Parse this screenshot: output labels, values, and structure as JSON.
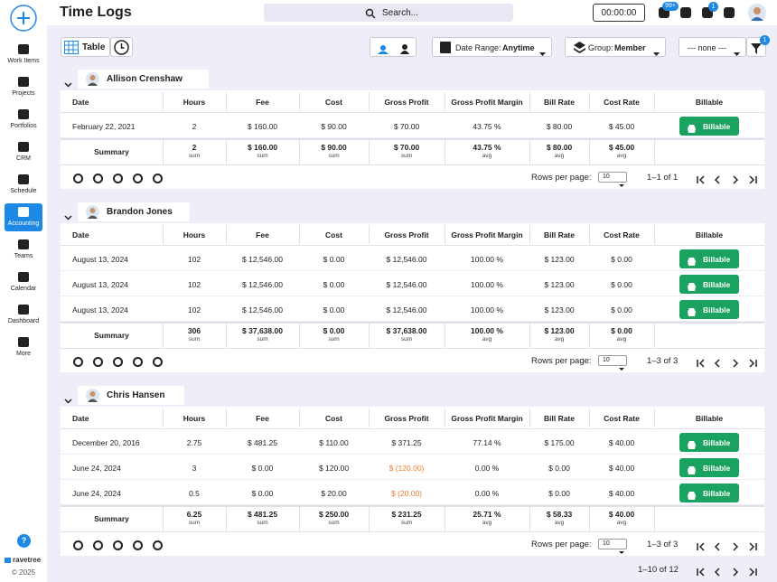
{
  "sidebar": {
    "items": [
      {
        "label": "Work Items"
      },
      {
        "label": "Projects"
      },
      {
        "label": "Portfolios"
      },
      {
        "label": "CRM"
      },
      {
        "label": "Schedule"
      },
      {
        "label": "Accounting"
      },
      {
        "label": "Teams"
      },
      {
        "label": "Calendar"
      },
      {
        "label": "Dashboard"
      },
      {
        "label": "More"
      }
    ],
    "help": "?",
    "brand": "ravetree",
    "copyright": "© 2025"
  },
  "header": {
    "title": "Time Logs",
    "search": "Search...",
    "timer": "00:00:00",
    "notification_badge": "99+",
    "inbox_badge": "1"
  },
  "toolbar": {
    "view": "Table",
    "date_range_label": "Date Range:",
    "date_range": "Anytime",
    "group_label": "Group:",
    "group": "Member",
    "filter_select": "--- none ---",
    "filter_badge": "1"
  },
  "columns": [
    "Date",
    "Hours",
    "Fee",
    "Cost",
    "Gross Profit",
    "Gross Profit Margin",
    "Bill Rate",
    "Cost Rate",
    "Billable"
  ],
  "groups": [
    {
      "name": "Allison Crenshaw",
      "rows": [
        [
          "February 22, 2021",
          "2",
          "$ 160.00",
          "$ 90.00",
          "$ 70.00",
          "43.75 %",
          "$ 80.00",
          "$ 45.00",
          "Billable"
        ]
      ],
      "summary": {
        "label": "Summary",
        "cells": [
          {
            "value": "2",
            "agg": "sum"
          },
          {
            "value": "$ 160.00",
            "agg": "sum"
          },
          {
            "value": "$ 90.00",
            "agg": "sum"
          },
          {
            "value": "$ 70.00",
            "agg": "sum"
          },
          {
            "value": "43.75 %",
            "agg": "avg"
          },
          {
            "value": "$ 80.00",
            "agg": "avg"
          },
          {
            "value": "$ 45.00",
            "agg": "avg"
          }
        ]
      },
      "rows_per_page_label": "Rows per page:",
      "rows_per_page": "10",
      "range": "1–1 of 1"
    },
    {
      "name": "Brandon Jones",
      "rows": [
        [
          "August 13, 2024",
          "102",
          "$ 12,546.00",
          "$ 0.00",
          "$ 12,546.00",
          "100.00 %",
          "$ 123.00",
          "$ 0.00",
          "Billable"
        ],
        [
          "August 13, 2024",
          "102",
          "$ 12,546.00",
          "$ 0.00",
          "$ 12,546.00",
          "100.00 %",
          "$ 123.00",
          "$ 0.00",
          "Billable"
        ],
        [
          "August 13, 2024",
          "102",
          "$ 12,546.00",
          "$ 0.00",
          "$ 12,546.00",
          "100.00 %",
          "$ 123.00",
          "$ 0.00",
          "Billable"
        ]
      ],
      "summary": {
        "label": "Summary",
        "cells": [
          {
            "value": "306",
            "agg": "sum"
          },
          {
            "value": "$ 37,638.00",
            "agg": "sum"
          },
          {
            "value": "$ 0.00",
            "agg": "sum"
          },
          {
            "value": "$ 37,638.00",
            "agg": "sum"
          },
          {
            "value": "100.00 %",
            "agg": "avg"
          },
          {
            "value": "$ 123.00",
            "agg": "avg"
          },
          {
            "value": "$ 0.00",
            "agg": "avg"
          }
        ]
      },
      "rows_per_page_label": "Rows per page:",
      "rows_per_page": "10",
      "range": "1–3 of 3"
    },
    {
      "name": "Chris Hansen",
      "rows": [
        [
          "December 20, 2016",
          "2.75",
          "$ 481.25",
          "$ 110.00",
          "$ 371.25",
          "77.14 %",
          "$ 175.00",
          "$ 40.00",
          "Billable"
        ],
        [
          "June 24, 2024",
          "3",
          "$ 0.00",
          "$ 120.00",
          "$ (120.00)",
          "0.00 %",
          "$ 0.00",
          "$ 40.00",
          "Billable"
        ],
        [
          "June 24, 2024",
          "0.5",
          "$ 0.00",
          "$ 20.00",
          "$ (20.00)",
          "0.00 %",
          "$ 0.00",
          "$ 40.00",
          "Billable"
        ]
      ],
      "summary": {
        "label": "Summary",
        "cells": [
          {
            "value": "6.25",
            "agg": "sum"
          },
          {
            "value": "$ 481.25",
            "agg": "sum"
          },
          {
            "value": "$ 250.00",
            "agg": "sum"
          },
          {
            "value": "$ 231.25",
            "agg": "sum"
          },
          {
            "value": "25.71 %",
            "agg": "avg"
          },
          {
            "value": "$ 58.33",
            "agg": "avg"
          },
          {
            "value": "$ 40.00",
            "agg": "avg"
          }
        ]
      },
      "rows_per_page_label": "Rows per page:",
      "rows_per_page": "10",
      "range": "1–3 of 3"
    }
  ],
  "pagination": "1–10 of 12"
}
